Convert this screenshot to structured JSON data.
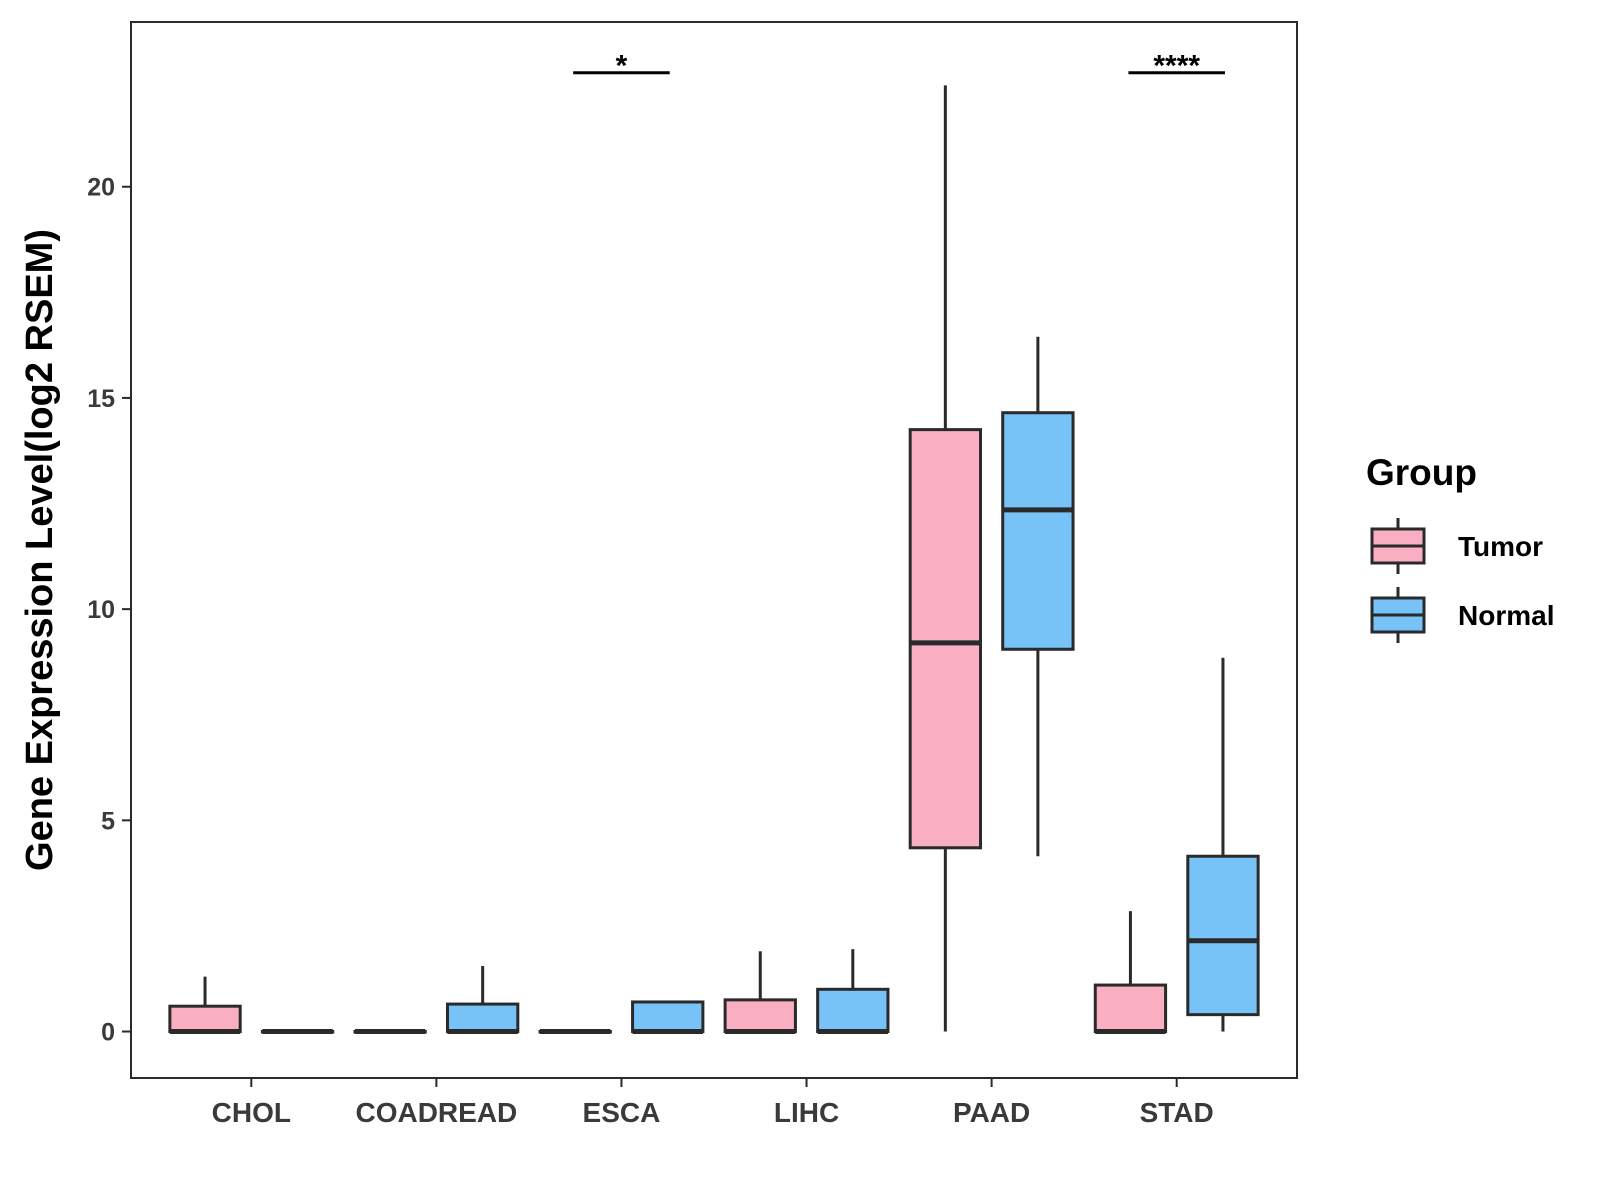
{
  "chart_data": {
    "type": "boxplot",
    "title": "",
    "xlabel": "",
    "ylabel": "Gene Expression Level(log2 RSEM)",
    "ylim": [
      -1.1,
      23.9
    ],
    "yticks": [
      0,
      5,
      10,
      15,
      20
    ],
    "categories": [
      "CHOL",
      "COADREAD",
      "ESCA",
      "LIHC",
      "PAAD",
      "STAD"
    ],
    "legend": {
      "title": "Group",
      "placement": "right",
      "entries": [
        "Tumor",
        "Normal"
      ]
    },
    "colors": {
      "Tumor": "#F9AFC1",
      "Normal": "#77C2F7",
      "stroke": "#2a2a2a"
    },
    "series": [
      {
        "name": "Tumor",
        "boxes": [
          {
            "category": "CHOL",
            "min": 0,
            "q1": 0,
            "median": 0,
            "q3": 0.6,
            "max": 1.3
          },
          {
            "category": "COADREAD",
            "min": 0,
            "q1": 0,
            "median": 0,
            "q3": 0,
            "max": 0
          },
          {
            "category": "ESCA",
            "min": 0,
            "q1": 0,
            "median": 0,
            "q3": 0,
            "max": 0
          },
          {
            "category": "LIHC",
            "min": 0,
            "q1": 0,
            "median": 0,
            "q3": 0.75,
            "max": 1.9
          },
          {
            "category": "PAAD",
            "min": 0,
            "q1": 4.35,
            "median": 9.2,
            "q3": 14.25,
            "max": 22.4
          },
          {
            "category": "STAD",
            "min": 0,
            "q1": 0,
            "median": 0,
            "q3": 1.1,
            "max": 2.85
          }
        ]
      },
      {
        "name": "Normal",
        "boxes": [
          {
            "category": "CHOL",
            "min": 0,
            "q1": 0,
            "median": 0,
            "q3": 0,
            "max": 0
          },
          {
            "category": "COADREAD",
            "min": 0,
            "q1": 0,
            "median": 0,
            "q3": 0.65,
            "max": 1.55
          },
          {
            "category": "ESCA",
            "min": 0,
            "q1": 0,
            "median": 0,
            "q3": 0.7,
            "max": 0.7
          },
          {
            "category": "LIHC",
            "min": 0,
            "q1": 0,
            "median": 0,
            "q3": 1.0,
            "max": 1.95
          },
          {
            "category": "PAAD",
            "min": 4.15,
            "q1": 9.05,
            "median": 12.35,
            "q3": 14.65,
            "max": 16.45
          },
          {
            "category": "STAD",
            "min": 0,
            "q1": 0.4,
            "median": 2.15,
            "q3": 4.15,
            "max": 8.85
          }
        ]
      }
    ],
    "annotations": [
      {
        "category": "ESCA",
        "label": "*",
        "y": 22.7
      },
      {
        "category": "STAD",
        "label": "****",
        "y": 22.7
      }
    ]
  }
}
